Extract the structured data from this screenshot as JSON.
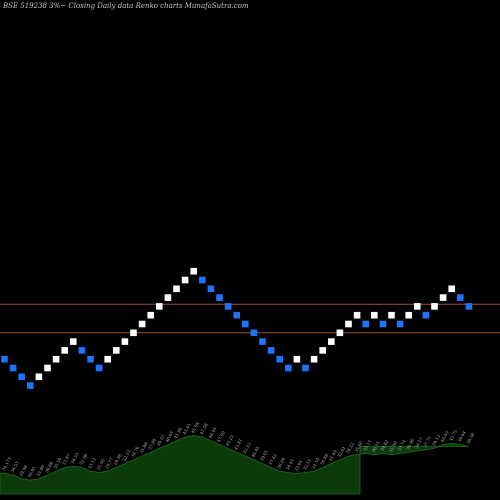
{
  "title": "BSE 519238  3%~  Closing Daily data  Renko  charts MunafaSutra.com",
  "chart_data": {
    "type": "renko",
    "brick_pct": 3,
    "colors": {
      "background": "#000000",
      "up_brick": "#ffffff",
      "down_brick": "#1e73ff",
      "reference_line": "#a0522d",
      "area_fill": "#0b3a0b",
      "area_stroke": "#1e6b1e"
    },
    "y_range": [
      1,
      35
    ],
    "reference_lines": [
      23.25,
      20
    ],
    "bricks": [
      {
        "dir": "down",
        "level": 17
      },
      {
        "dir": "down",
        "level": 16
      },
      {
        "dir": "down",
        "level": 15
      },
      {
        "dir": "down",
        "level": 14
      },
      {
        "dir": "up",
        "level": 15
      },
      {
        "dir": "up",
        "level": 16
      },
      {
        "dir": "up",
        "level": 17
      },
      {
        "dir": "up",
        "level": 18
      },
      {
        "dir": "up",
        "level": 19
      },
      {
        "dir": "down",
        "level": 18
      },
      {
        "dir": "down",
        "level": 17
      },
      {
        "dir": "down",
        "level": 16
      },
      {
        "dir": "up",
        "level": 17
      },
      {
        "dir": "up",
        "level": 18
      },
      {
        "dir": "up",
        "level": 19
      },
      {
        "dir": "up",
        "level": 20
      },
      {
        "dir": "up",
        "level": 21
      },
      {
        "dir": "up",
        "level": 22
      },
      {
        "dir": "up",
        "level": 23
      },
      {
        "dir": "up",
        "level": 24
      },
      {
        "dir": "up",
        "level": 25
      },
      {
        "dir": "up",
        "level": 26
      },
      {
        "dir": "up",
        "level": 27
      },
      {
        "dir": "down",
        "level": 26
      },
      {
        "dir": "down",
        "level": 25
      },
      {
        "dir": "down",
        "level": 24
      },
      {
        "dir": "down",
        "level": 23
      },
      {
        "dir": "down",
        "level": 22
      },
      {
        "dir": "down",
        "level": 21
      },
      {
        "dir": "down",
        "level": 20
      },
      {
        "dir": "down",
        "level": 19
      },
      {
        "dir": "down",
        "level": 18
      },
      {
        "dir": "down",
        "level": 17
      },
      {
        "dir": "down",
        "level": 16
      },
      {
        "dir": "up",
        "level": 17
      },
      {
        "dir": "down",
        "level": 16
      },
      {
        "dir": "up",
        "level": 17
      },
      {
        "dir": "up",
        "level": 18
      },
      {
        "dir": "up",
        "level": 19
      },
      {
        "dir": "up",
        "level": 20
      },
      {
        "dir": "up",
        "level": 21
      },
      {
        "dir": "up",
        "level": 22
      },
      {
        "dir": "down",
        "level": 21
      },
      {
        "dir": "up",
        "level": 22
      },
      {
        "dir": "down",
        "level": 21
      },
      {
        "dir": "up",
        "level": 22
      },
      {
        "dir": "down",
        "level": 21
      },
      {
        "dir": "up",
        "level": 22
      },
      {
        "dir": "up",
        "level": 23
      },
      {
        "dir": "down",
        "level": 22
      },
      {
        "dir": "up",
        "level": 23
      },
      {
        "dir": "up",
        "level": 24
      },
      {
        "dir": "up",
        "level": 25
      },
      {
        "dir": "down",
        "level": 24
      },
      {
        "dir": "down",
        "level": 23
      }
    ],
    "volume_labels": [
      "34.175",
      "34.53",
      "29.98",
      "30.95",
      "33.49",
      "36.66",
      "35.59",
      "33.87",
      "34.55",
      "32.98",
      "33.51",
      "31.56",
      "29.77",
      "29.98",
      "32.23",
      "34.76",
      "35.88",
      "37.99",
      "39.35",
      "40.65",
      "41.66",
      "43.45",
      "45.94",
      "47.58",
      "48.45",
      "47.00",
      "45.22",
      "43.81",
      "42.12",
      "40.45",
      "39.01",
      "37.42",
      "36.09",
      "34.43",
      "33.05",
      "32.51",
      "31.10",
      "30.88",
      "31.49",
      "32.81",
      "34.22",
      "35.60",
      "33.11",
      "36.55",
      "34.82",
      "35.90",
      "33.74",
      "36.96",
      "34.17",
      "37.71",
      "39.12",
      "40.83",
      "42.75",
      "39.64",
      "38.58"
    ]
  }
}
